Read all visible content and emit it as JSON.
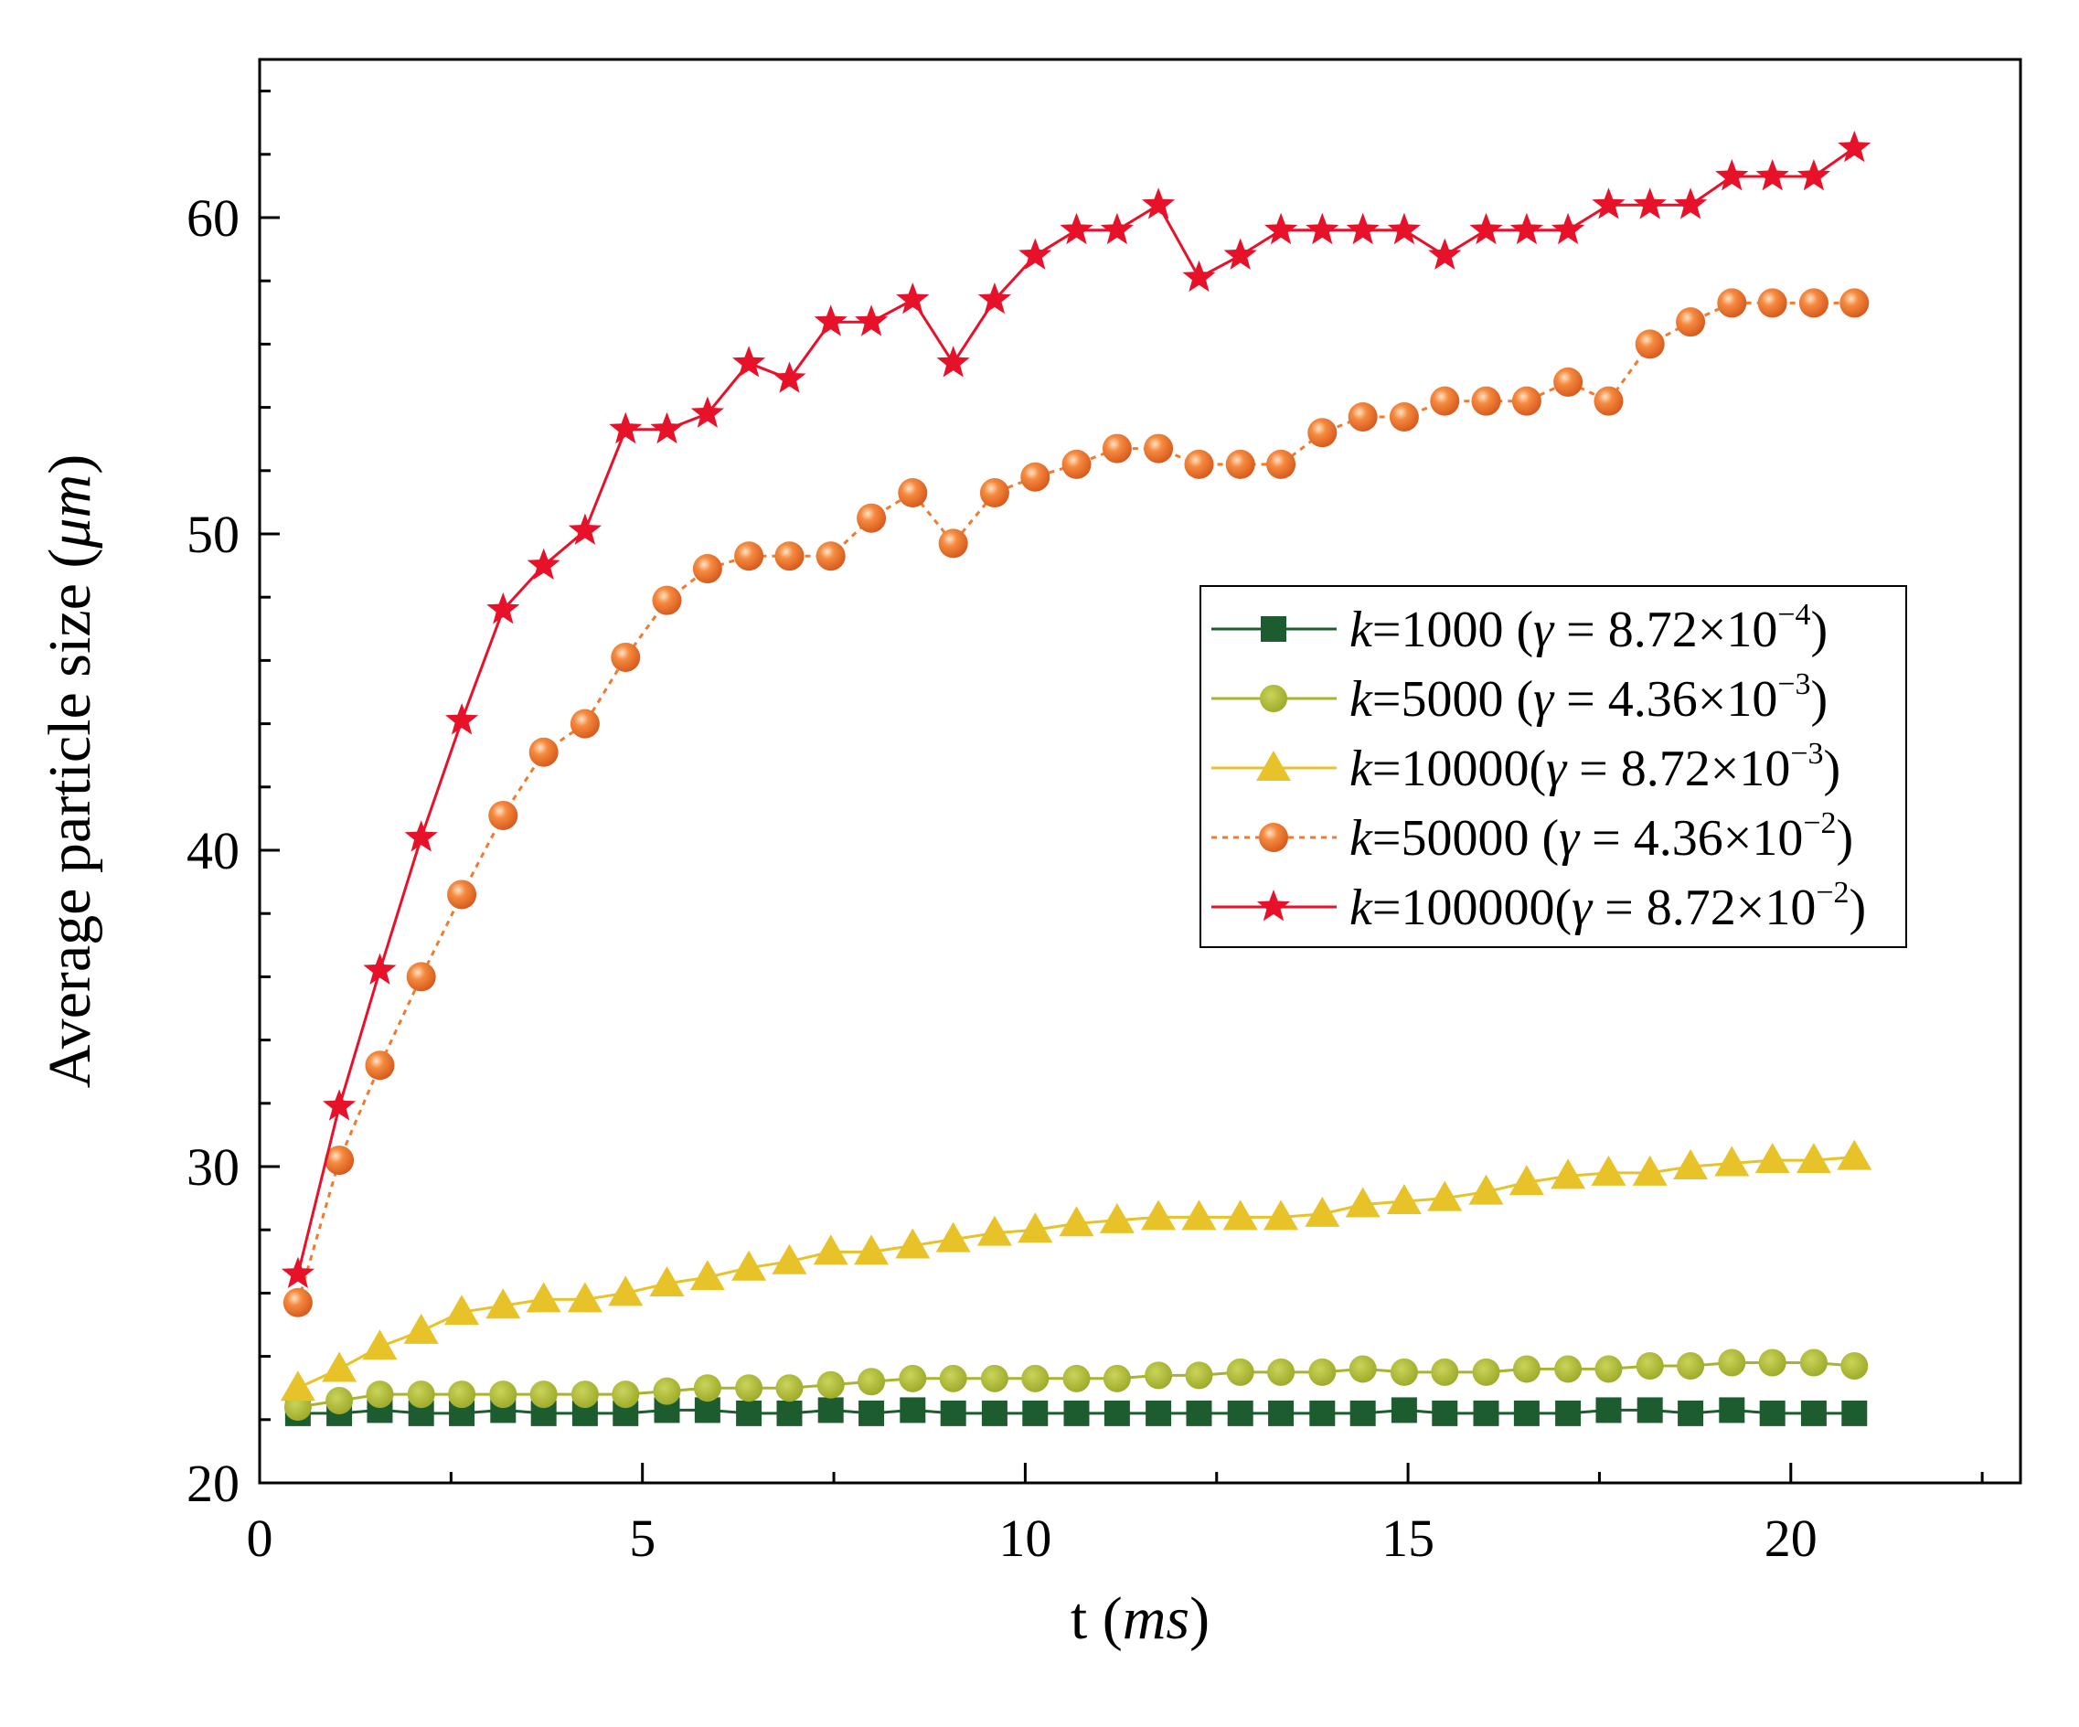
{
  "chart_data": {
    "type": "line",
    "xlabel_parts": [
      "t (",
      "ms",
      ")"
    ],
    "ylabel_parts": [
      "Average particle size (",
      "μm",
      ")"
    ],
    "xlim": [
      0,
      23
    ],
    "ylim": [
      20,
      65
    ],
    "xticks": [
      "0",
      "5",
      "10",
      "15",
      "20"
    ],
    "yticks": [
      "20",
      "30",
      "40",
      "50",
      "60"
    ],
    "legend_position": "center-right",
    "grid": false,
    "x": [
      0.5,
      1.04,
      1.57,
      2.11,
      2.64,
      3.18,
      3.71,
      4.25,
      4.78,
      5.32,
      5.85,
      6.39,
      6.92,
      7.46,
      7.99,
      8.53,
      9.06,
      9.6,
      10.13,
      10.67,
      11.2,
      11.74,
      12.27,
      12.81,
      13.34,
      13.88,
      14.41,
      14.95,
      15.48,
      16.02,
      16.55,
      17.09,
      17.62,
      18.16,
      18.69,
      19.23,
      19.76,
      20.3,
      20.83
    ],
    "series": [
      {
        "legend_k": "k",
        "legend_main": "=1000  (",
        "legend_gamma": "γ",
        "legend_eq": " = 8.72×10",
        "legend_exp": "−4",
        "legend_close": ")",
        "color": "#1c5c2e",
        "marker": "square",
        "dashed": false,
        "values": [
          22.2,
          22.2,
          22.3,
          22.2,
          22.2,
          22.3,
          22.2,
          22.2,
          22.2,
          22.3,
          22.3,
          22.2,
          22.2,
          22.3,
          22.2,
          22.3,
          22.2,
          22.2,
          22.2,
          22.2,
          22.2,
          22.2,
          22.2,
          22.2,
          22.2,
          22.2,
          22.2,
          22.3,
          22.2,
          22.2,
          22.2,
          22.2,
          22.3,
          22.3,
          22.2,
          22.3,
          22.2,
          22.2,
          22.2
        ]
      },
      {
        "legend_k": "k",
        "legend_main": "=5000  (",
        "legend_gamma": "γ",
        "legend_eq": " = 4.36×10",
        "legend_exp": "−3",
        "legend_close": ")",
        "color": "#a8b430",
        "marker": "circle",
        "dashed": false,
        "values": [
          22.4,
          22.6,
          22.8,
          22.8,
          22.8,
          22.8,
          22.8,
          22.8,
          22.8,
          22.9,
          23.0,
          23.0,
          23.0,
          23.1,
          23.2,
          23.3,
          23.3,
          23.3,
          23.3,
          23.3,
          23.3,
          23.4,
          23.4,
          23.5,
          23.5,
          23.5,
          23.6,
          23.5,
          23.5,
          23.5,
          23.6,
          23.6,
          23.6,
          23.7,
          23.7,
          23.8,
          23.8,
          23.8,
          23.7
        ]
      },
      {
        "legend_k": "k",
        "legend_main": "=10000(",
        "legend_gamma": "γ",
        "legend_eq": " = 8.72×10",
        "legend_exp": "−3",
        "legend_close": ")",
        "color": "#e8c229",
        "marker": "triangle",
        "dashed": false,
        "values": [
          23.0,
          23.6,
          24.3,
          24.8,
          25.4,
          25.6,
          25.8,
          25.8,
          26.0,
          26.3,
          26.5,
          26.8,
          27.0,
          27.3,
          27.3,
          27.5,
          27.7,
          27.9,
          28.0,
          28.2,
          28.3,
          28.4,
          28.4,
          28.4,
          28.4,
          28.5,
          28.8,
          28.9,
          29.0,
          29.2,
          29.5,
          29.7,
          29.8,
          29.8,
          30.0,
          30.1,
          30.2,
          30.2,
          30.3
        ]
      },
      {
        "legend_k": "k",
        "legend_main": "=50000 (",
        "legend_gamma": "γ",
        "legend_eq": " = 4.36×10",
        "legend_exp": "−2",
        "legend_close": ")",
        "color": "#f07a2e",
        "marker": "sphere",
        "dashed": true,
        "values": [
          25.7,
          30.2,
          33.2,
          36.0,
          38.6,
          41.1,
          43.1,
          44.0,
          46.1,
          47.9,
          48.9,
          49.3,
          49.3,
          49.3,
          50.5,
          51.3,
          49.7,
          51.3,
          51.8,
          52.2,
          52.7,
          52.7,
          52.2,
          52.2,
          52.2,
          53.2,
          53.7,
          53.7,
          54.2,
          54.2,
          54.2,
          54.8,
          54.2,
          56.0,
          56.7,
          57.3,
          57.3,
          57.3,
          57.3
        ]
      },
      {
        "legend_k": "k",
        "legend_main": "=100000(",
        "legend_gamma": "γ",
        "legend_eq": " = 8.72×10",
        "legend_exp": "−2",
        "legend_close": ")",
        "color": "#e8112a",
        "marker": "star",
        "dashed": false,
        "values": [
          26.6,
          31.9,
          36.2,
          40.4,
          44.1,
          47.6,
          49.0,
          50.1,
          53.3,
          53.3,
          53.8,
          55.4,
          54.9,
          56.7,
          56.7,
          57.4,
          55.4,
          57.4,
          58.8,
          59.6,
          59.6,
          60.4,
          58.1,
          58.8,
          59.6,
          59.6,
          59.6,
          59.6,
          58.8,
          59.6,
          59.6,
          59.6,
          60.4,
          60.4,
          60.4,
          61.3,
          61.3,
          61.3,
          62.2
        ]
      }
    ]
  }
}
